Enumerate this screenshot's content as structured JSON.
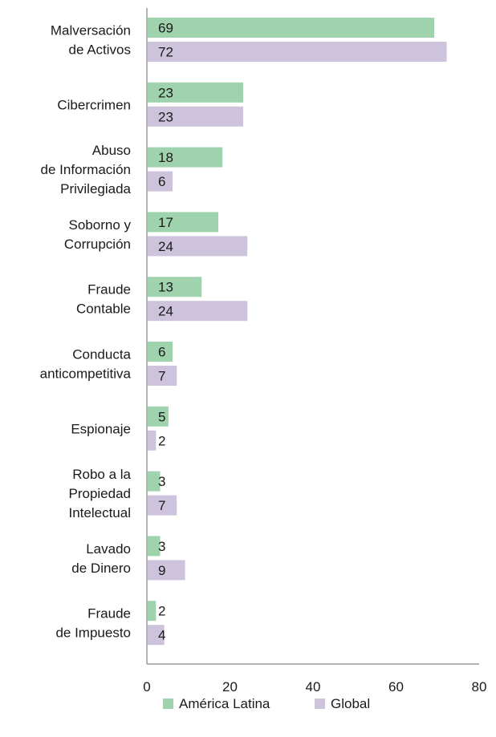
{
  "chart_data": {
    "type": "bar",
    "orientation": "horizontal",
    "title": "",
    "xlabel": "",
    "ylabel": "",
    "xlim": [
      0,
      80
    ],
    "x_ticks": [
      0,
      20,
      40,
      60,
      80
    ],
    "grid": false,
    "legend_position": "bottom",
    "categories": [
      [
        "Malversación",
        "de Activos"
      ],
      [
        "Cibercrimen"
      ],
      [
        "Abuso",
        "de Información",
        "Privilegiada"
      ],
      [
        "Soborno y",
        "Corrupción"
      ],
      [
        "Fraude",
        "Contable"
      ],
      [
        "Conducta",
        "anticompetitiva"
      ],
      [
        "Espionaje"
      ],
      [
        "Robo a la",
        "Propiedad",
        "Intelectual"
      ],
      [
        "Lavado",
        "de Dinero"
      ],
      [
        "Fraude",
        "de Impuesto"
      ]
    ],
    "series": [
      {
        "name": "América Latina",
        "color": "#9fd3ad",
        "values": [
          69,
          23,
          18,
          17,
          13,
          6,
          5,
          3,
          3,
          2
        ]
      },
      {
        "name": "Global",
        "color": "#cdc3dd",
        "values": [
          72,
          23,
          6,
          24,
          24,
          7,
          2,
          7,
          9,
          4
        ]
      }
    ]
  }
}
